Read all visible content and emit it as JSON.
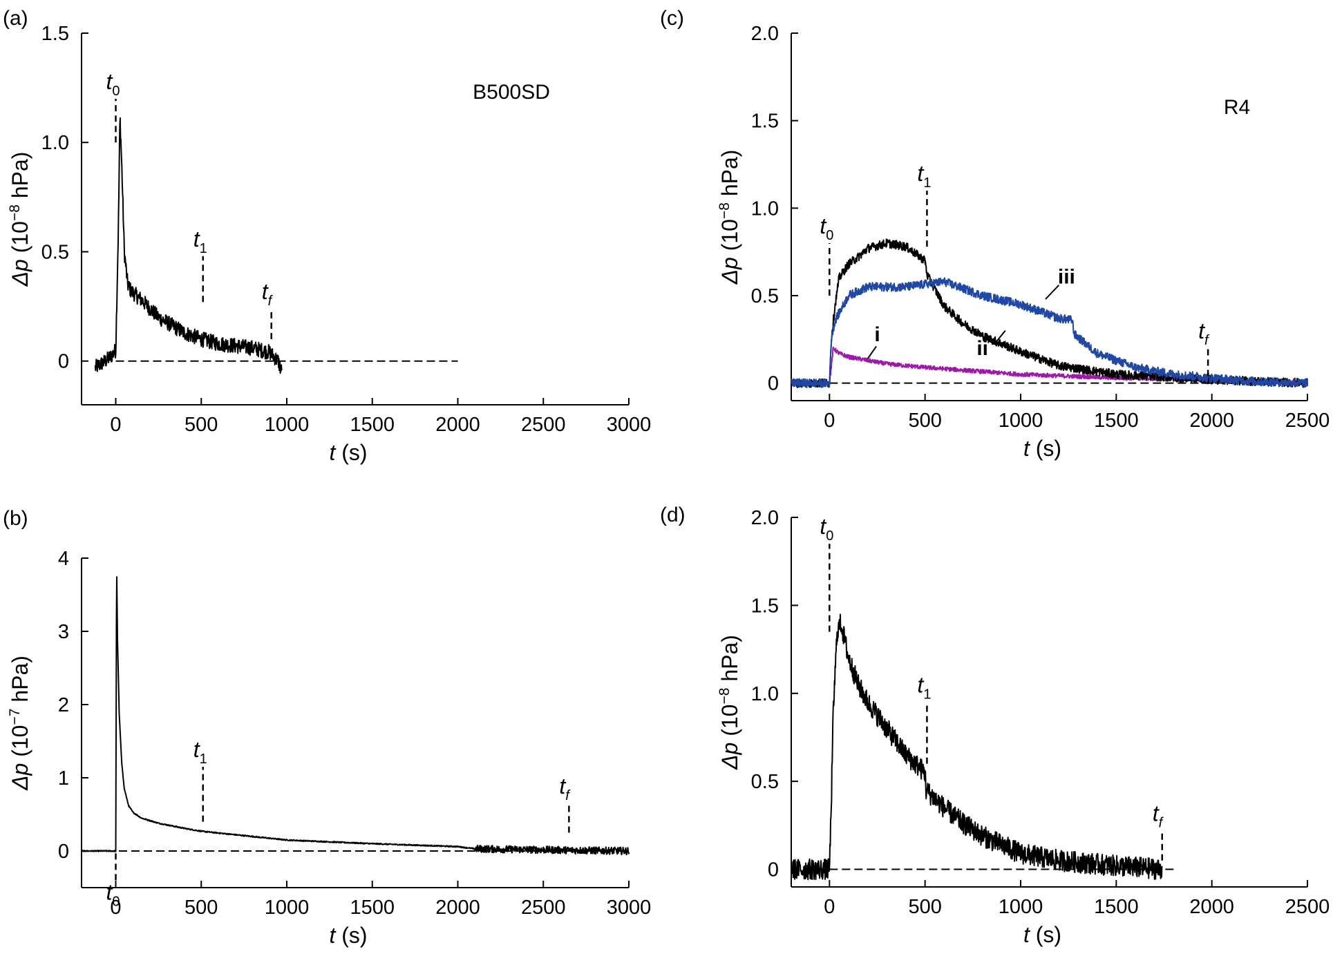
{
  "figure": {
    "panels": [
      "a",
      "b",
      "c",
      "d"
    ]
  },
  "chart_data": [
    {
      "panel": "a",
      "panel_label": "(a)",
      "type": "line",
      "annotation": "B500SD",
      "xlabel_sym": "t",
      "xlabel_unit": "(s)",
      "ylabel_sym": "Δp",
      "ylabel_pre": "(10",
      "ylabel_exp": "−8",
      "ylabel_post": "hPa)",
      "xlim": [
        -200,
        3000
      ],
      "ylim": [
        -0.2,
        1.5
      ],
      "xticks": [
        0,
        500,
        1000,
        1500,
        2000,
        2500,
        3000
      ],
      "yticks": [
        0,
        0.5,
        1.0,
        1.5
      ],
      "ytick_labels": [
        "0",
        "0.5",
        "1.0",
        "1.5"
      ],
      "baseline": {
        "from": 0,
        "to": 2000
      },
      "markers": [
        {
          "label": "t",
          "sub": "0",
          "x": 0,
          "y_from": 1.0,
          "y_to": 1.2
        },
        {
          "label": "t",
          "sub": "1",
          "x": 510,
          "y_from": 0.27,
          "y_to": 0.48
        },
        {
          "label": "t",
          "sub": "f",
          "x": 910,
          "y_from": 0.1,
          "y_to": 0.24
        }
      ],
      "series": [
        {
          "color": "#000000",
          "noise": 0.035,
          "x": [
            -120,
            -60,
            -30,
            0,
            15,
            25,
            35,
            50,
            70,
            90,
            150,
            250,
            400,
            500,
            600,
            700,
            800,
            900,
            950,
            970
          ],
          "y": [
            -0.03,
            0.0,
            0.02,
            0.05,
            0.6,
            1.12,
            0.9,
            0.5,
            0.35,
            0.32,
            0.28,
            0.2,
            0.13,
            0.1,
            0.08,
            0.07,
            0.06,
            0.04,
            0.0,
            -0.05
          ]
        }
      ]
    },
    {
      "panel": "b",
      "panel_label": "(b)",
      "type": "line",
      "xlabel_sym": "t",
      "xlabel_unit": "(s)",
      "ylabel_sym": "Δp",
      "ylabel_pre": "(10",
      "ylabel_exp": "−7",
      "ylabel_post": "hPa)",
      "xlim": [
        -200,
        3000
      ],
      "ylim": [
        -0.5,
        4.0
      ],
      "xticks": [
        0,
        500,
        1000,
        1500,
        2000,
        2500,
        3000
      ],
      "yticks": [
        0,
        1,
        2,
        3,
        4
      ],
      "ytick_labels": [
        "0",
        "1",
        "2",
        "3",
        "4"
      ],
      "baseline": {
        "from": -200,
        "to": 3000
      },
      "markers": [
        {
          "label": "t",
          "sub": "0",
          "x": 0,
          "y_from": -0.4,
          "y_to": -0.02,
          "label_below": true
        },
        {
          "label": "t",
          "sub": "1",
          "x": 510,
          "y_from": 0.4,
          "y_to": 1.15
        },
        {
          "label": "t",
          "sub": "f",
          "x": 2650,
          "y_from": 0.25,
          "y_to": 0.65
        }
      ],
      "series": [
        {
          "color": "#000000",
          "noise": 0.008,
          "noise_after": 2100,
          "noise_after_amp": 0.05,
          "x": [
            -200,
            -10,
            0,
            5,
            10,
            20,
            35,
            50,
            75,
            100,
            150,
            250,
            400,
            500,
            1000,
            1500,
            2000,
            2100,
            3000
          ],
          "y": [
            0.0,
            0.0,
            0.0,
            3.95,
            2.9,
            1.9,
            1.2,
            0.85,
            0.62,
            0.53,
            0.45,
            0.38,
            0.31,
            0.27,
            0.15,
            0.1,
            0.06,
            0.03,
            0.0
          ]
        }
      ]
    },
    {
      "panel": "c",
      "panel_label": "(c)",
      "type": "line",
      "annotation": "R4",
      "xlabel_sym": "t",
      "xlabel_unit": "(s)",
      "ylabel_sym": "Δp",
      "ylabel_pre": "(10",
      "ylabel_exp": "−8",
      "ylabel_post": "hPa)",
      "xlim": [
        -200,
        2500
      ],
      "ylim": [
        -0.1,
        2.0
      ],
      "xticks": [
        0,
        500,
        1000,
        1500,
        2000,
        2500
      ],
      "yticks": [
        0,
        0.5,
        1.0,
        1.5,
        2.0
      ],
      "ytick_labels": [
        "0",
        "0.5",
        "1.0",
        "1.5",
        "2.0"
      ],
      "baseline": {
        "from": 0,
        "to": 2500
      },
      "markers": [
        {
          "label": "t",
          "sub": "0",
          "x": 0,
          "y_from": 0.5,
          "y_to": 0.8
        },
        {
          "label": "t",
          "sub": "1",
          "x": 510,
          "y_from": 0.78,
          "y_to": 1.1
        },
        {
          "label": "t",
          "sub": "f",
          "x": 1980,
          "y_from": 0.04,
          "y_to": 0.2
        }
      ],
      "series_labels": [
        {
          "text": "i",
          "x": 250,
          "y": 0.24,
          "lx1": 200,
          "ly1": 0.14,
          "lx2": 245,
          "ly2": 0.21
        },
        {
          "text": "ii",
          "x": 800,
          "y": 0.16,
          "lx1": 860,
          "ly1": 0.22,
          "lx2": 920,
          "ly2": 0.3
        },
        {
          "text": "iii",
          "x": 1240,
          "y": 0.57,
          "lx1": 1130,
          "ly1": 0.48,
          "lx2": 1200,
          "ly2": 0.56
        }
      ],
      "series": [
        {
          "name": "i",
          "color": "#9b1aa8",
          "noise": 0.012,
          "x": [
            -200,
            -10,
            0,
            20,
            50,
            100,
            200,
            300,
            500,
            1000,
            1500,
            2000,
            2500
          ],
          "y": [
            0.0,
            0.0,
            0.0,
            0.2,
            0.17,
            0.15,
            0.13,
            0.11,
            0.09,
            0.05,
            0.03,
            0.02,
            0.0
          ]
        },
        {
          "name": "ii",
          "color": "#000000",
          "noise": 0.025,
          "x": [
            -200,
            -10,
            0,
            10,
            30,
            50,
            100,
            150,
            200,
            300,
            400,
            500,
            510,
            600,
            700,
            800,
            1000,
            1200,
            1500,
            2000,
            2500
          ],
          "y": [
            0.0,
            0.0,
            0.0,
            0.26,
            0.45,
            0.6,
            0.68,
            0.72,
            0.77,
            0.8,
            0.78,
            0.7,
            0.62,
            0.44,
            0.34,
            0.27,
            0.18,
            0.1,
            0.05,
            0.02,
            0.0
          ]
        },
        {
          "name": "iii",
          "color": "#1f47a3",
          "noise": 0.025,
          "x": [
            -200,
            -10,
            0,
            10,
            30,
            50,
            100,
            200,
            400,
            600,
            800,
            1000,
            1200,
            1270,
            1280,
            1400,
            1600,
            1800,
            2000,
            2200,
            2500
          ],
          "y": [
            0.0,
            0.0,
            0.0,
            0.26,
            0.36,
            0.4,
            0.5,
            0.55,
            0.55,
            0.58,
            0.5,
            0.45,
            0.37,
            0.36,
            0.28,
            0.17,
            0.09,
            0.05,
            0.03,
            0.01,
            0.0
          ]
        }
      ]
    },
    {
      "panel": "d",
      "panel_label": "(d)",
      "type": "line",
      "xlabel_sym": "t",
      "xlabel_unit": "(s)",
      "ylabel_sym": "Δp",
      "ylabel_pre": "(10",
      "ylabel_exp": "−8",
      "ylabel_post": "hPa)",
      "xlim": [
        -200,
        2500
      ],
      "ylim": [
        -0.1,
        2.0
      ],
      "xticks": [
        0,
        500,
        1000,
        1500,
        2000,
        2500
      ],
      "yticks": [
        0,
        0.5,
        1.0,
        1.5,
        2.0
      ],
      "ytick_labels": [
        "0",
        "0.5",
        "1.0",
        "1.5",
        "2.0"
      ],
      "baseline": {
        "from": 0,
        "to": 1800
      },
      "markers": [
        {
          "label": "t",
          "sub": "0",
          "x": 0,
          "y_from": 1.35,
          "y_to": 1.85
        },
        {
          "label": "t",
          "sub": "1",
          "x": 510,
          "y_from": 0.6,
          "y_to": 0.95
        },
        {
          "label": "t",
          "sub": "f",
          "x": 1740,
          "y_from": 0.05,
          "y_to": 0.22
        }
      ],
      "series": [
        {
          "color": "#000000",
          "noise": 0.06,
          "x": [
            -200,
            -10,
            0,
            10,
            20,
            40,
            60,
            80,
            100,
            150,
            200,
            300,
            400,
            500,
            505,
            600,
            700,
            800,
            1000,
            1200,
            1500,
            1740
          ],
          "y": [
            0.0,
            0.0,
            0.0,
            0.4,
            0.9,
            1.35,
            1.4,
            1.3,
            1.2,
            1.05,
            0.95,
            0.8,
            0.65,
            0.55,
            0.45,
            0.35,
            0.26,
            0.19,
            0.09,
            0.05,
            0.02,
            0.0
          ]
        }
      ]
    }
  ]
}
